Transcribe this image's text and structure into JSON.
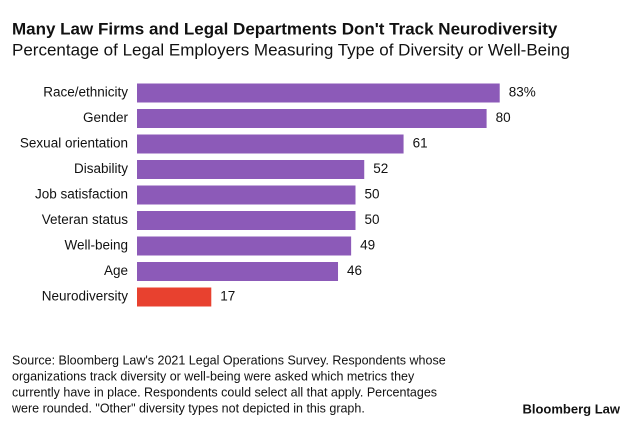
{
  "chart_data": {
    "type": "hbar",
    "title": "Many Law Firms and Legal Departments Don't Track Neurodiversity",
    "subtitle": "Percentage of Legal Employers Measuring Type of Diversity or Well-Being",
    "categories": [
      "Race/ethnicity",
      "Gender",
      "Sexual orientation",
      "Disability",
      "Job satisfaction",
      "Veteran status",
      "Well-being",
      "Age",
      "Neurodiversity"
    ],
    "values": [
      83,
      80,
      61,
      52,
      50,
      50,
      49,
      46,
      17
    ],
    "value_labels": [
      "83%",
      "80",
      "61",
      "52",
      "50",
      "50",
      "49",
      "46",
      "17"
    ],
    "colors": [
      "#8c5ab8",
      "#8c5ab8",
      "#8c5ab8",
      "#8c5ab8",
      "#8c5ab8",
      "#8c5ab8",
      "#8c5ab8",
      "#8c5ab8",
      "#e8412f"
    ],
    "xlim": [
      0,
      100
    ],
    "source": [
      "Source: Bloomberg Law's 2021 Legal Operations Survey. Respondents whose",
      "organizations track diversity or well-being were asked which metrics they",
      "currently have in place. Respondents could select all that apply. Percentages",
      "were rounded. \"Other\" diversity types not depicted in this graph."
    ],
    "brand": "Bloomberg Law"
  }
}
